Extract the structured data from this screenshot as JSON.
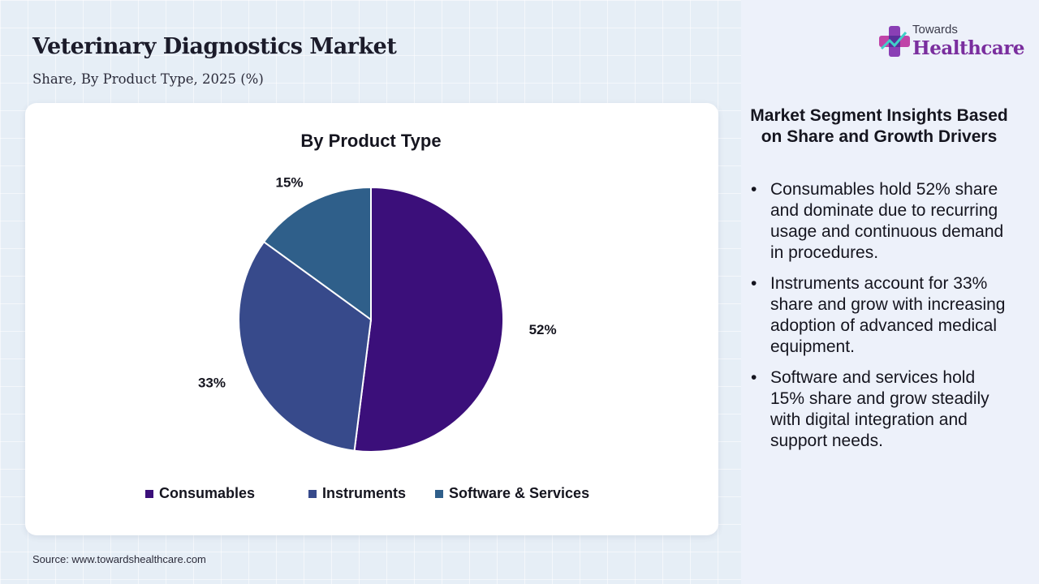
{
  "header": {
    "title": "Veterinary Diagnostics Market",
    "subtitle": "Share, By Product Type, 2025 (%)"
  },
  "logo": {
    "top_text": "Towards",
    "bottom_text": "Healthcare"
  },
  "source": "Source: www.towardshealthcare.com",
  "chart_data": {
    "type": "pie",
    "title": "By Product Type",
    "categories": [
      "Consumables",
      "Instruments",
      "Software & Services"
    ],
    "values": [
      52,
      33,
      15
    ],
    "labels": [
      "52%",
      "33%",
      "15%"
    ],
    "colors": [
      "#3b0f7a",
      "#374a8b",
      "#2f5f8a"
    ],
    "legend_position": "bottom"
  },
  "insights": {
    "title": "Market Segment Insights Based on Share and Growth Drivers",
    "items": [
      "Consumables hold 52% share and dominate due to recurring usage and continuous demand in procedures.",
      "Instruments account for 33% share and grow with increasing adoption of advanced medical equipment.",
      "Software and services hold 15% share and grow steadily with digital integration and support needs."
    ]
  }
}
